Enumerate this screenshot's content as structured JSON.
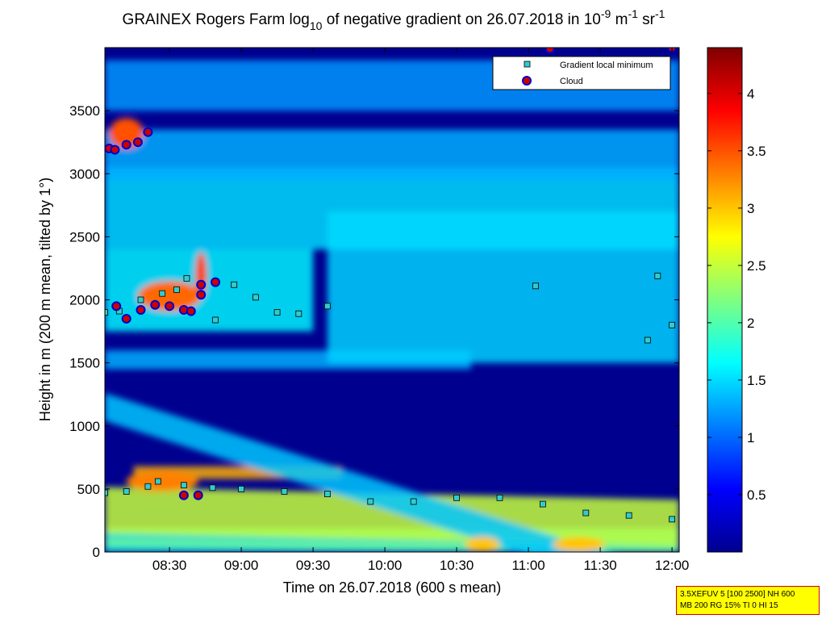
{
  "chart_data": {
    "type": "heatmap",
    "title": {
      "prefix": "GRAINEX Rogers Farm log",
      "sub10": "10",
      "middle": " of negative gradient on 26.07.2018 in 10",
      "sup_exp": "-9",
      "unit_m": " m",
      "sup_m": "-1",
      "unit_sr": " sr",
      "sup_sr": "-1"
    },
    "xlabel": "Time on 26.07.2018 (600 s mean)",
    "ylabel": "Height in m (200 m mean, tilted by 1°)",
    "x_range": [
      "08:03",
      "12:03"
    ],
    "xlim_hours": [
      8.05,
      12.05
    ],
    "ylim": [
      0,
      4000
    ],
    "x_ticks": [
      {
        "label": "08:30",
        "hours": 8.5
      },
      {
        "label": "09:00",
        "hours": 9.0
      },
      {
        "label": "09:30",
        "hours": 9.5
      },
      {
        "label": "10:00",
        "hours": 10.0
      },
      {
        "label": "10:30",
        "hours": 10.5
      },
      {
        "label": "11:00",
        "hours": 11.0
      },
      {
        "label": "11:30",
        "hours": 11.5
      },
      {
        "label": "12:00",
        "hours": 12.0
      }
    ],
    "y_ticks": [
      {
        "label": "0",
        "value": 0
      },
      {
        "label": "500",
        "value": 500
      },
      {
        "label": "1000",
        "value": 1000
      },
      {
        "label": "1500",
        "value": 1500
      },
      {
        "label": "2000",
        "value": 2000
      },
      {
        "label": "2500",
        "value": 2500
      },
      {
        "label": "3000",
        "value": 3000
      },
      {
        "label": "3500",
        "value": 3500
      }
    ],
    "colorbar": {
      "range": [
        0,
        4.4
      ],
      "colormap": "jet",
      "ticks": [
        {
          "label": "0.5",
          "value": 0.5
        },
        {
          "label": "1",
          "value": 1.0
        },
        {
          "label": "1.5",
          "value": 1.5
        },
        {
          "label": "2",
          "value": 2.0
        },
        {
          "label": "2.5",
          "value": 2.5
        },
        {
          "label": "3",
          "value": 3.0
        },
        {
          "label": "3.5",
          "value": 3.5
        },
        {
          "label": "4",
          "value": 4.0
        }
      ]
    },
    "legend": {
      "placement": "top-right",
      "entries": [
        {
          "label": "Gradient local minimum",
          "marker": "square",
          "color": "#33cccc"
        },
        {
          "label": "Cloud",
          "marker": "circle",
          "color": "#cc0000",
          "edge": "#0000cc"
        }
      ]
    },
    "heatmap_features": [
      {
        "kind": "layer",
        "t0": 8.05,
        "t1": 12.05,
        "h0": 0,
        "h1": 190,
        "value": 1.8,
        "h_start": 0,
        "h_end": 230
      },
      {
        "kind": "layer",
        "t0": 8.05,
        "t1": 12.05,
        "h0": 310,
        "h1": 680,
        "value": 2.5,
        "h_start": 330,
        "h_end": 230
      },
      {
        "kind": "layer",
        "t0": 8.05,
        "t1": 12.05,
        "h0": 520,
        "h1": 560,
        "value": 2.2,
        "h_start": 80,
        "h_end": 20
      },
      {
        "kind": "layer",
        "t0": 8.25,
        "t1": 9.7,
        "h0": 580,
        "h1": 680,
        "value": 3.1
      },
      {
        "kind": "layer",
        "t0": 8.05,
        "t1": 12.05,
        "h0": 1000,
        "h1": 1220,
        "value": 1.4,
        "h_start": 1150,
        "h_end": -300
      },
      {
        "kind": "layer",
        "t0": 8.05,
        "t1": 10.6,
        "h0": 1450,
        "h1": 1600,
        "value": 1.3
      },
      {
        "kind": "layer",
        "t0": 9.6,
        "t1": 12.05,
        "h0": 1500,
        "h1": 2700,
        "value": 1.45
      },
      {
        "kind": "layer",
        "t0": 8.05,
        "t1": 9.5,
        "h0": 1750,
        "h1": 2400,
        "value": 1.6
      },
      {
        "kind": "layer",
        "t0": 8.05,
        "t1": 12.05,
        "h0": 2400,
        "h1": 3050,
        "value": 1.5
      },
      {
        "kind": "layer",
        "t0": 8.05,
        "t1": 12.05,
        "h0": 2950,
        "h1": 3350,
        "value": 1.3
      },
      {
        "kind": "layer",
        "t0": 8.05,
        "t1": 12.05,
        "h0": 3500,
        "h1": 3900,
        "value": 1.2
      },
      {
        "kind": "blob",
        "t": 8.5,
        "h": 2030,
        "dt": 0.22,
        "dh": 120,
        "value": 3.4
      },
      {
        "kind": "blob",
        "t": 8.72,
        "h": 2200,
        "dt": 0.04,
        "dh": 180,
        "value": 3.6
      },
      {
        "kind": "blob",
        "t": 8.2,
        "h": 3320,
        "dt": 0.12,
        "dh": 120,
        "value": 3.5
      },
      {
        "kind": "blob",
        "t": 10.68,
        "h": 60,
        "dt": 0.12,
        "dh": 60,
        "value": 3.0
      },
      {
        "kind": "blob",
        "t": 11.35,
        "h": 60,
        "dt": 0.18,
        "dh": 60,
        "value": 3.0
      },
      {
        "kind": "blob",
        "t": 8.45,
        "h": 560,
        "dt": 0.25,
        "dh": 80,
        "value": 3.3
      }
    ],
    "gradient_local_minimum": [
      {
        "t": 8.05,
        "h": 470
      },
      {
        "t": 8.2,
        "h": 480
      },
      {
        "t": 8.35,
        "h": 520
      },
      {
        "t": 8.42,
        "h": 560
      },
      {
        "t": 8.6,
        "h": 530
      },
      {
        "t": 8.8,
        "h": 510
      },
      {
        "t": 9.0,
        "h": 500
      },
      {
        "t": 9.3,
        "h": 480
      },
      {
        "t": 9.6,
        "h": 460
      },
      {
        "t": 9.9,
        "h": 400
      },
      {
        "t": 10.2,
        "h": 400
      },
      {
        "t": 10.5,
        "h": 430
      },
      {
        "t": 10.8,
        "h": 430
      },
      {
        "t": 11.1,
        "h": 380
      },
      {
        "t": 11.4,
        "h": 310
      },
      {
        "t": 11.7,
        "h": 290
      },
      {
        "t": 12.0,
        "h": 260
      },
      {
        "t": 8.05,
        "h": 1900
      },
      {
        "t": 8.15,
        "h": 1910
      },
      {
        "t": 8.3,
        "h": 2000
      },
      {
        "t": 8.45,
        "h": 2050
      },
      {
        "t": 8.55,
        "h": 2080
      },
      {
        "t": 8.62,
        "h": 2170
      },
      {
        "t": 8.82,
        "h": 1840
      },
      {
        "t": 8.95,
        "h": 2120
      },
      {
        "t": 9.1,
        "h": 2020
      },
      {
        "t": 9.25,
        "h": 1900
      },
      {
        "t": 9.4,
        "h": 1890
      },
      {
        "t": 9.6,
        "h": 1950
      },
      {
        "t": 11.05,
        "h": 2110
      },
      {
        "t": 11.9,
        "h": 2190
      },
      {
        "t": 11.83,
        "h": 1680
      },
      {
        "t": 12.0,
        "h": 1800
      }
    ],
    "cloud": [
      {
        "t": 8.08,
        "h": 3200
      },
      {
        "t": 8.12,
        "h": 3190
      },
      {
        "t": 8.2,
        "h": 3230
      },
      {
        "t": 8.28,
        "h": 3250
      },
      {
        "t": 8.35,
        "h": 3330
      },
      {
        "t": 8.13,
        "h": 1950
      },
      {
        "t": 8.2,
        "h": 1850
      },
      {
        "t": 8.3,
        "h": 1920
      },
      {
        "t": 8.4,
        "h": 1960
      },
      {
        "t": 8.5,
        "h": 1950
      },
      {
        "t": 8.6,
        "h": 1920
      },
      {
        "t": 8.65,
        "h": 1910
      },
      {
        "t": 8.72,
        "h": 2120
      },
      {
        "t": 8.82,
        "h": 2140
      },
      {
        "t": 8.72,
        "h": 2040
      },
      {
        "t": 8.6,
        "h": 450
      },
      {
        "t": 8.7,
        "h": 450
      },
      {
        "t": 11.15,
        "h": 3990
      },
      {
        "t": 12.0,
        "h": 4000
      }
    ]
  },
  "info_box": {
    "line1": "3.5XEFUV 5 [100 2500] NH 600",
    "line2": "MB 200 RG 15% TI 0 HI 15"
  }
}
